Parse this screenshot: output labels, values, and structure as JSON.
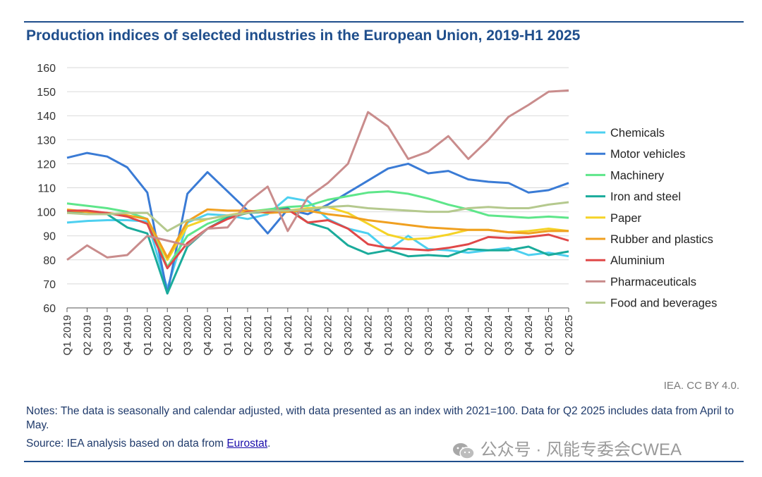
{
  "chart_data": {
    "type": "line",
    "title": "Production indices of selected industries in the European Union, 2019-H1 2025",
    "xlabel": "",
    "ylabel": "",
    "ylim": [
      60,
      160
    ],
    "yticks": [
      60,
      70,
      80,
      90,
      100,
      110,
      120,
      130,
      140,
      150,
      160
    ],
    "categories": [
      "Q1 2019",
      "Q2 2019",
      "Q3 2019",
      "Q4 2019",
      "Q1 2020",
      "Q2 2020",
      "Q3 2020",
      "Q4 2020",
      "Q1 2021",
      "Q2 2021",
      "Q3 2021",
      "Q4 2021",
      "Q1 2022",
      "Q2 2022",
      "Q3 2022",
      "Q4 2022",
      "Q1 2023",
      "Q2 2023",
      "Q3 2023",
      "Q4 2023",
      "Q1 2024",
      "Q2 2024",
      "Q3 2024",
      "Q4 2024",
      "Q1 2025",
      "Q2 2025"
    ],
    "series": [
      {
        "name": "Chemicals",
        "color": "#4dd0f0",
        "values": [
          95.5,
          96.2,
          96.5,
          96.5,
          96.0,
          68.0,
          95.5,
          99.0,
          98.5,
          97.0,
          99.0,
          106.0,
          104.5,
          97.0,
          93.0,
          91.0,
          84.0,
          90.0,
          84.5,
          84.0,
          83.0,
          84.0,
          85.0,
          82.0,
          83.0,
          81.5
        ]
      },
      {
        "name": "Motor vehicles",
        "color": "#3a7bd5",
        "values": [
          122.5,
          124.5,
          123.0,
          118.5,
          108.0,
          66.0,
          107.5,
          116.5,
          108.5,
          100.5,
          91.0,
          101.0,
          99.0,
          103.0,
          108.0,
          113.0,
          118.0,
          120.0,
          116.0,
          117.0,
          113.5,
          112.5,
          112.0,
          108.0,
          109.0,
          112.0
        ]
      },
      {
        "name": "Machinery",
        "color": "#5ee68a",
        "values": [
          103.5,
          102.5,
          101.5,
          100.0,
          97.0,
          77.0,
          90.0,
          95.0,
          98.0,
          100.0,
          101.0,
          102.0,
          102.5,
          105.0,
          106.5,
          108.0,
          108.5,
          107.5,
          105.5,
          103.0,
          101.0,
          98.5,
          98.0,
          97.5,
          98.0,
          97.5
        ]
      },
      {
        "name": "Iron and steel",
        "color": "#1aab9b",
        "values": [
          100.0,
          100.0,
          99.0,
          93.5,
          91.0,
          66.0,
          85.5,
          93.0,
          97.5,
          99.5,
          100.0,
          101.5,
          95.5,
          93.0,
          86.0,
          82.5,
          84.0,
          81.5,
          82.0,
          81.5,
          84.5,
          84.0,
          84.0,
          85.5,
          82.0,
          83.5
        ]
      },
      {
        "name": "Paper",
        "color": "#f5d327",
        "values": [
          101.0,
          100.0,
          99.5,
          98.5,
          97.0,
          80.0,
          94.0,
          97.0,
          98.5,
          100.0,
          100.5,
          100.5,
          101.5,
          102.0,
          99.5,
          95.0,
          90.5,
          88.5,
          89.0,
          90.5,
          92.5,
          92.5,
          91.5,
          92.0,
          93.0,
          92.0
        ]
      },
      {
        "name": "Rubber and plastics",
        "color": "#f0a020",
        "values": [
          100.5,
          100.0,
          99.5,
          98.5,
          97.0,
          81.0,
          96.0,
          101.0,
          100.5,
          100.5,
          99.5,
          100.0,
          100.5,
          99.0,
          98.0,
          96.5,
          95.5,
          94.5,
          93.5,
          93.0,
          92.5,
          92.5,
          91.5,
          91.0,
          92.0,
          92.0
        ]
      },
      {
        "name": "Aluminium",
        "color": "#e04848",
        "values": [
          100.5,
          100.5,
          99.5,
          98.0,
          95.0,
          76.5,
          87.0,
          93.0,
          97.0,
          100.0,
          100.0,
          101.0,
          95.5,
          96.5,
          93.0,
          86.5,
          85.0,
          84.5,
          84.0,
          85.0,
          86.5,
          89.5,
          89.0,
          89.5,
          90.5,
          88.0
        ]
      },
      {
        "name": "Pharmaceuticals",
        "color": "#c98c8c",
        "values": [
          80.0,
          86.0,
          81.0,
          82.0,
          90.0,
          88.0,
          86.0,
          93.0,
          93.5,
          104.0,
          110.5,
          92.0,
          106.0,
          112.0,
          120.0,
          141.5,
          135.5,
          122.0,
          125.0,
          131.5,
          122.0,
          130.0,
          139.5,
          144.5,
          150.0,
          150.5
        ]
      },
      {
        "name": "Food and beverages",
        "color": "#b5c98e",
        "values": [
          99.5,
          99.0,
          99.0,
          99.5,
          99.5,
          92.0,
          96.5,
          97.0,
          98.5,
          99.5,
          100.5,
          100.5,
          101.0,
          102.0,
          102.5,
          101.5,
          101.0,
          100.5,
          100.0,
          100.0,
          101.5,
          102.0,
          101.5,
          101.5,
          103.0,
          104.0
        ]
      }
    ]
  },
  "credit": "IEA. CC BY 4.0.",
  "notes": "Notes: The data is seasonally and calendar adjusted, with data presented as an index with 2021=100. Data for Q2 2025 includes data from April to May.",
  "source_prefix": "Source: IEA analysis based on data from ",
  "source_link": "Eurostat",
  "source_suffix": ".",
  "watermark": "公众号 · 风能专委会CWEA"
}
